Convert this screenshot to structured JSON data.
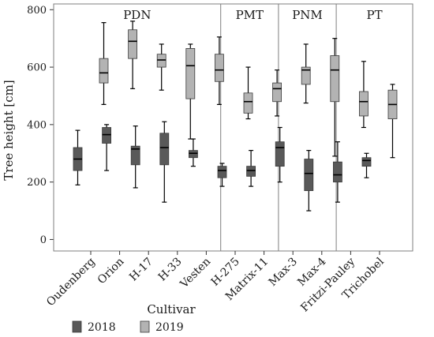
{
  "chart_data": {
    "type": "boxplot",
    "ylabel": "Tree height [cm]",
    "xlabel": "Cultivar",
    "ylim": [
      -40,
      820
    ],
    "yticks": [
      0,
      200,
      400,
      600,
      800
    ],
    "grid": false,
    "legend_position": "bottom",
    "colors": {
      "2018": "#595959",
      "2019": "#b3b3b3",
      "frame": "#7f7f7f"
    },
    "groups": [
      {
        "label": "PDN",
        "cultivar_count": 5
      },
      {
        "label": "PMT",
        "cultivar_count": 2
      },
      {
        "label": "PNM",
        "cultivar_count": 2
      },
      {
        "label": "PT",
        "cultivar_count": 2
      }
    ],
    "categories": [
      "Oudenberg",
      "Orion",
      "H-17",
      "H-33",
      "Vesten",
      "H-275",
      "Matrix-11",
      "Max-3",
      "Max-4",
      "Fritzi-Pauley",
      "Trichobel"
    ],
    "series": [
      {
        "name": "2018",
        "boxes": [
          {
            "min": 190,
            "q1": 240,
            "median": 280,
            "q3": 320,
            "max": 380
          },
          {
            "min": 240,
            "q1": 335,
            "median": 365,
            "q3": 390,
            "max": 400
          },
          {
            "min": 180,
            "q1": 260,
            "median": 315,
            "q3": 325,
            "max": 395
          },
          {
            "min": 130,
            "q1": 260,
            "median": 320,
            "q3": 370,
            "max": 410
          },
          {
            "min": 255,
            "q1": 285,
            "median": 300,
            "q3": 310,
            "max": 350
          },
          {
            "min": 185,
            "q1": 215,
            "median": 240,
            "q3": 255,
            "max": 265
          },
          {
            "min": 185,
            "q1": 220,
            "median": 240,
            "q3": 255,
            "max": 310
          },
          {
            "min": 200,
            "q1": 255,
            "median": 320,
            "q3": 340,
            "max": 390
          },
          {
            "min": 100,
            "q1": 170,
            "median": 230,
            "q3": 280,
            "max": 310
          },
          {
            "min": 130,
            "q1": 200,
            "median": 225,
            "q3": 270,
            "max": 340
          },
          {
            "min": 215,
            "q1": 255,
            "median": 275,
            "q3": 285,
            "max": 300
          }
        ]
      },
      {
        "name": "2019",
        "boxes": [
          {
            "min": 470,
            "q1": 545,
            "median": 580,
            "q3": 630,
            "max": 755
          },
          {
            "min": 525,
            "q1": 630,
            "median": 690,
            "q3": 730,
            "max": 760
          },
          {
            "min": 520,
            "q1": 600,
            "median": 625,
            "q3": 645,
            "max": 680
          },
          {
            "min": 350,
            "q1": 490,
            "median": 605,
            "q3": 665,
            "max": 680
          },
          {
            "min": 470,
            "q1": 550,
            "median": 590,
            "q3": 645,
            "max": 705
          },
          {
            "min": 420,
            "q1": 440,
            "median": 480,
            "q3": 510,
            "max": 600
          },
          {
            "min": 430,
            "q1": 480,
            "median": 525,
            "q3": 545,
            "max": 590
          },
          {
            "min": 475,
            "q1": 540,
            "median": 590,
            "q3": 600,
            "max": 680
          },
          {
            "min": 290,
            "q1": 480,
            "median": 590,
            "q3": 640,
            "max": 700
          },
          {
            "min": 390,
            "q1": 430,
            "median": 480,
            "q3": 515,
            "max": 620
          },
          {
            "min": 285,
            "q1": 420,
            "median": 470,
            "q3": 520,
            "max": 540
          }
        ]
      }
    ]
  }
}
